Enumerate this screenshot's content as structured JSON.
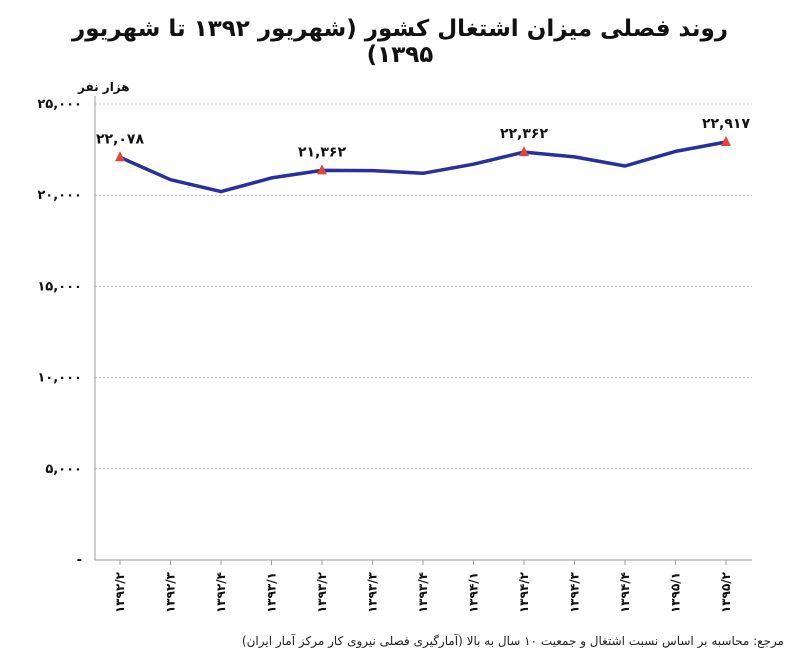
{
  "chart_data": {
    "type": "line",
    "title": "روند فصلی میزان اشتغال کشور (شهریور ۱۳۹۲ تا شهریور ۱۳۹۵)",
    "unit_label": "هزار نفر",
    "source_note": "مرجع: محاسبه بر اساس نسبت اشتغال و جمعیت ۱۰ سال به بالا (آمارگیری فصلی نیروی کار مرکز آمار ایران)",
    "categories": [
      "۱۳۹۲/۲",
      "۱۳۹۲/۳",
      "۱۳۹۲/۴",
      "۱۳۹۳/۱",
      "۱۳۹۳/۲",
      "۱۳۹۳/۳",
      "۱۳۹۳/۴",
      "۱۳۹۴/۱",
      "۱۳۹۴/۲",
      "۱۳۹۴/۳",
      "۱۳۹۴/۴",
      "۱۳۹۵/۱",
      "۱۳۹۵/۲"
    ],
    "series": [
      {
        "values": [
          22078,
          20850,
          20200,
          20950,
          21362,
          21350,
          21200,
          21700,
          22362,
          22100,
          21600,
          22400,
          22917
        ],
        "color": "#2a2f9e",
        "marker_color": "#e0443a"
      }
    ],
    "data_labels": [
      {
        "index": 0,
        "text": "۲۲,۰۷۸"
      },
      {
        "index": 4,
        "text": "۲۱,۳۶۲"
      },
      {
        "index": 8,
        "text": "۲۲,۳۶۲"
      },
      {
        "index": 12,
        "text": "۲۲,۹۱۷"
      }
    ],
    "ylim": [
      0,
      25000
    ],
    "yticks": [
      {
        "value": 0,
        "label": "-"
      },
      {
        "value": 5000,
        "label": "۵,۰۰۰"
      },
      {
        "value": 10000,
        "label": "۱۰,۰۰۰"
      },
      {
        "value": 15000,
        "label": "۱۵,۰۰۰"
      },
      {
        "value": 20000,
        "label": "۲۰,۰۰۰"
      },
      {
        "value": 25000,
        "label": "۲۵,۰۰۰"
      }
    ],
    "grid": true,
    "legend": "none"
  }
}
